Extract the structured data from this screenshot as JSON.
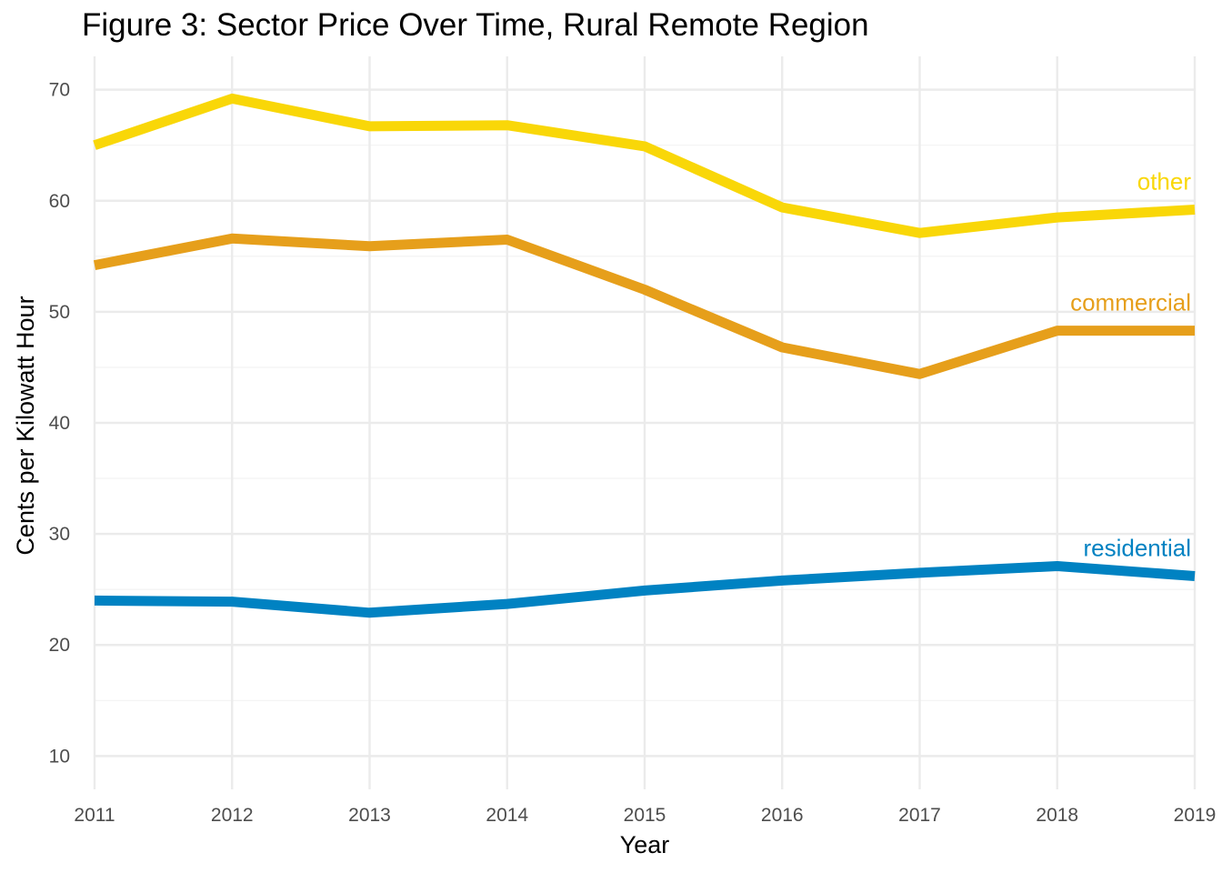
{
  "chart_data": {
    "type": "line",
    "title": "Figure 3: Sector Price Over Time, Rural Remote Region",
    "xlabel": "Year",
    "ylabel": "Cents per Kilowatt Hour",
    "x": [
      2011,
      2012,
      2013,
      2014,
      2015,
      2016,
      2017,
      2018,
      2019
    ],
    "xlim": [
      2011,
      2019
    ],
    "ylim": [
      7,
      73
    ],
    "yticks": [
      10,
      20,
      30,
      40,
      50,
      60,
      70
    ],
    "grid": true,
    "legend": "direct labels at end of lines",
    "series": [
      {
        "name": "other",
        "color": "#F9D708",
        "values": [
          65.0,
          69.2,
          66.7,
          66.8,
          64.9,
          59.4,
          57.1,
          58.5,
          59.2
        ]
      },
      {
        "name": "commercial",
        "color": "#E69F1B",
        "values": [
          54.2,
          56.6,
          55.9,
          56.5,
          52.0,
          46.8,
          44.4,
          48.3,
          48.3
        ]
      },
      {
        "name": "residential",
        "color": "#0082C2",
        "values": [
          24.0,
          23.9,
          22.9,
          23.7,
          24.9,
          25.8,
          26.5,
          27.1,
          26.2
        ]
      }
    ]
  }
}
